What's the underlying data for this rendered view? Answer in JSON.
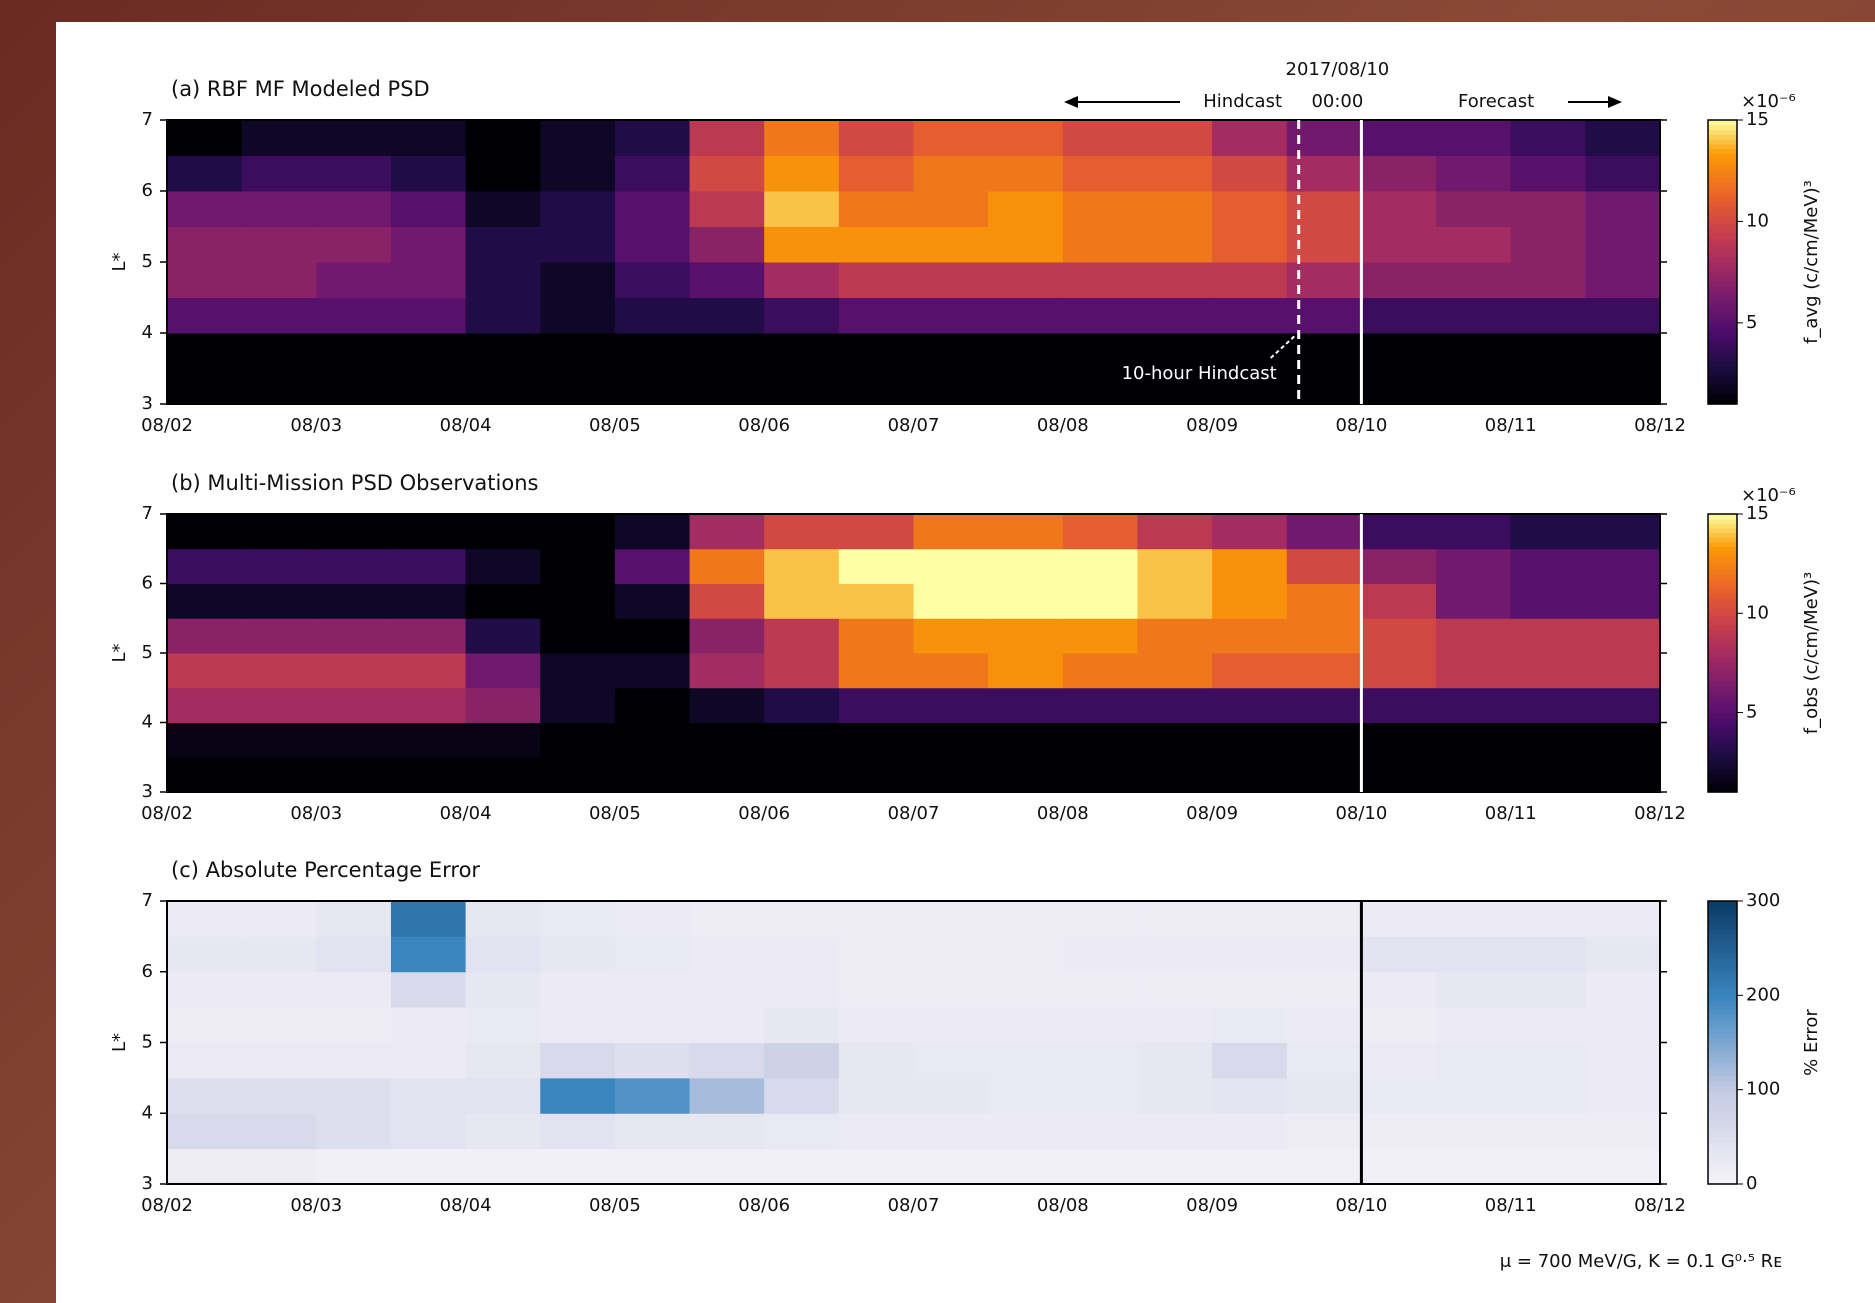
{
  "chart_data": [
    {
      "type": "heatmap",
      "title": "(a) RBF MF Modeled PSD",
      "ylabel": "L*",
      "xticks": [
        "08/02",
        "08/03",
        "08/04",
        "08/05",
        "08/06",
        "08/07",
        "08/08",
        "08/09",
        "08/10",
        "08/11",
        "08/12"
      ],
      "ylim": [
        3,
        7
      ],
      "yticks": [
        3,
        4,
        5,
        6,
        7
      ],
      "clim": [
        1,
        15
      ],
      "cticks": [
        5,
        10,
        15
      ],
      "colorbar_label": "f_avg (c/cm/MeV)³",
      "colorbar_scale": "×10⁻⁶",
      "colormap": "inferno",
      "vline_color": "#ffffff",
      "annotations": {
        "date": "2017/08/10",
        "time": "00:00",
        "hindcast": "Hindcast",
        "forecast": "Forecast",
        "hindcast_window": "10-hour Hindcast"
      },
      "values": [
        [
          0.5,
          0.5,
          0.5,
          0.5,
          0.5,
          0.5,
          0.5,
          0.5,
          0.5,
          0.5,
          0.5,
          0.5,
          0.5,
          0.5,
          0.5,
          0.5,
          0.5,
          0.5,
          0.5,
          0.5
        ],
        [
          1,
          1,
          1,
          1,
          1,
          1,
          1,
          1,
          1,
          1,
          1,
          1,
          1,
          1,
          1,
          1,
          1,
          1,
          1,
          1
        ],
        [
          5,
          5,
          5,
          5,
          3,
          2,
          3,
          3,
          4,
          5,
          5,
          5,
          5,
          5,
          5,
          5,
          4,
          4,
          4,
          4
        ],
        [
          7,
          7,
          6,
          6,
          3,
          2,
          4,
          5,
          8,
          9,
          9,
          9,
          9,
          9,
          9,
          8,
          7,
          7,
          7,
          6
        ],
        [
          7,
          7,
          7,
          6,
          3,
          3,
          5,
          7,
          13,
          13,
          13,
          13,
          12,
          12,
          11,
          10,
          8,
          8,
          7,
          6
        ],
        [
          6,
          6,
          6,
          5,
          2,
          3,
          5,
          9,
          14,
          12,
          12,
          13,
          12,
          12,
          11,
          10,
          8,
          7,
          7,
          6
        ],
        [
          3,
          4,
          4,
          3,
          1,
          2,
          4,
          10,
          13,
          11,
          12,
          12,
          11,
          11,
          10,
          8,
          7,
          6,
          5,
          4
        ],
        [
          1,
          2,
          2,
          2,
          1,
          2,
          3,
          9,
          12,
          10,
          11,
          11,
          10,
          10,
          8,
          6,
          5,
          5,
          4,
          3
        ]
      ]
    },
    {
      "type": "heatmap",
      "title": "(b) Multi-Mission PSD Observations",
      "ylabel": "L*",
      "xticks": [
        "08/02",
        "08/03",
        "08/04",
        "08/05",
        "08/06",
        "08/07",
        "08/08",
        "08/09",
        "08/10",
        "08/11",
        "08/12"
      ],
      "ylim": [
        3,
        7
      ],
      "yticks": [
        3,
        4,
        5,
        6,
        7
      ],
      "clim": [
        1,
        15
      ],
      "cticks": [
        5,
        10,
        15
      ],
      "colorbar_label": "f_obs (c/cm/MeV)³",
      "colorbar_scale": "×10⁻⁶",
      "colormap": "inferno",
      "vline_color": "#ffffff",
      "values": [
        [
          0.5,
          0.5,
          0.5,
          0.5,
          0.5,
          0.5,
          0.5,
          0.5,
          0.5,
          0.5,
          0.5,
          0.5,
          0.5,
          0.5,
          0.5,
          0.5,
          0.5,
          0.5,
          0.5,
          0.5
        ],
        [
          1.5,
          1.5,
          1.5,
          1.5,
          1.5,
          0.5,
          0.5,
          0.5,
          0.5,
          0.5,
          0.5,
          0.5,
          0.5,
          0.5,
          0.5,
          0.5,
          0.5,
          0.5,
          0.5,
          0.5
        ],
        [
          8,
          8,
          8,
          8,
          7,
          2,
          1,
          2,
          3,
          4,
          4,
          4,
          4,
          4,
          4,
          4,
          4,
          4,
          4,
          4
        ],
        [
          9,
          9,
          9,
          9,
          6,
          2,
          2,
          8,
          9,
          12,
          12,
          13,
          12,
          12,
          11,
          11,
          10,
          9,
          9,
          9
        ],
        [
          7,
          7,
          7,
          7,
          3,
          1,
          1,
          7,
          9,
          12,
          13,
          13,
          13,
          12,
          12,
          12,
          10,
          9,
          9,
          9
        ],
        [
          2,
          2,
          2,
          2,
          1,
          1,
          2,
          10,
          14,
          14,
          15,
          15,
          15,
          14,
          13,
          12,
          9,
          6,
          5,
          5
        ],
        [
          4,
          4,
          4,
          4,
          2,
          1,
          5,
          12,
          14,
          15,
          15,
          15,
          15,
          14,
          13,
          10,
          7,
          6,
          5,
          5
        ],
        [
          1,
          1,
          1,
          1,
          1,
          1,
          2,
          8,
          10,
          10,
          12,
          12,
          11,
          9,
          8,
          6,
          4,
          4,
          3,
          3
        ]
      ]
    },
    {
      "type": "heatmap",
      "title": "(c) Absolute Percentage Error",
      "ylabel": "L*",
      "xticks": [
        "08/02",
        "08/03",
        "08/04",
        "08/05",
        "08/06",
        "08/07",
        "08/08",
        "08/09",
        "08/10",
        "08/11",
        "08/12"
      ],
      "ylim": [
        3,
        7
      ],
      "yticks": [
        3,
        4,
        5,
        6,
        7
      ],
      "clim": [
        0,
        300
      ],
      "cticks": [
        0,
        100,
        200,
        300
      ],
      "colorbar_label": "% Error",
      "colormap": "blues",
      "vline_color": "#000000",
      "values": [
        [
          15,
          15,
          10,
          10,
          10,
          10,
          10,
          10,
          10,
          10,
          10,
          10,
          10,
          10,
          10,
          10,
          10,
          10,
          10,
          10
        ],
        [
          60,
          60,
          50,
          40,
          30,
          40,
          30,
          30,
          25,
          20,
          20,
          20,
          20,
          20,
          20,
          15,
          15,
          15,
          15,
          15
        ],
        [
          50,
          50,
          50,
          40,
          40,
          200,
          180,
          120,
          60,
          30,
          30,
          25,
          25,
          30,
          35,
          30,
          25,
          25,
          25,
          20
        ],
        [
          20,
          20,
          20,
          20,
          30,
          60,
          50,
          60,
          80,
          30,
          25,
          25,
          25,
          30,
          60,
          25,
          20,
          25,
          25,
          20
        ],
        [
          15,
          15,
          15,
          20,
          25,
          20,
          20,
          20,
          30,
          20,
          20,
          20,
          20,
          20,
          25,
          20,
          15,
          20,
          20,
          20
        ],
        [
          20,
          20,
          20,
          60,
          30,
          20,
          20,
          20,
          20,
          15,
          15,
          15,
          15,
          15,
          15,
          15,
          20,
          30,
          30,
          20
        ],
        [
          30,
          30,
          40,
          200,
          40,
          30,
          25,
          20,
          20,
          15,
          15,
          15,
          20,
          20,
          20,
          20,
          40,
          40,
          40,
          30
        ],
        [
          20,
          20,
          30,
          220,
          30,
          25,
          20,
          15,
          15,
          15,
          15,
          15,
          15,
          15,
          15,
          15,
          20,
          20,
          20,
          20
        ]
      ]
    }
  ],
  "footnote": "μ = 700 MeV/G, K = 0.1 G⁰·⁵ Rᴇ"
}
